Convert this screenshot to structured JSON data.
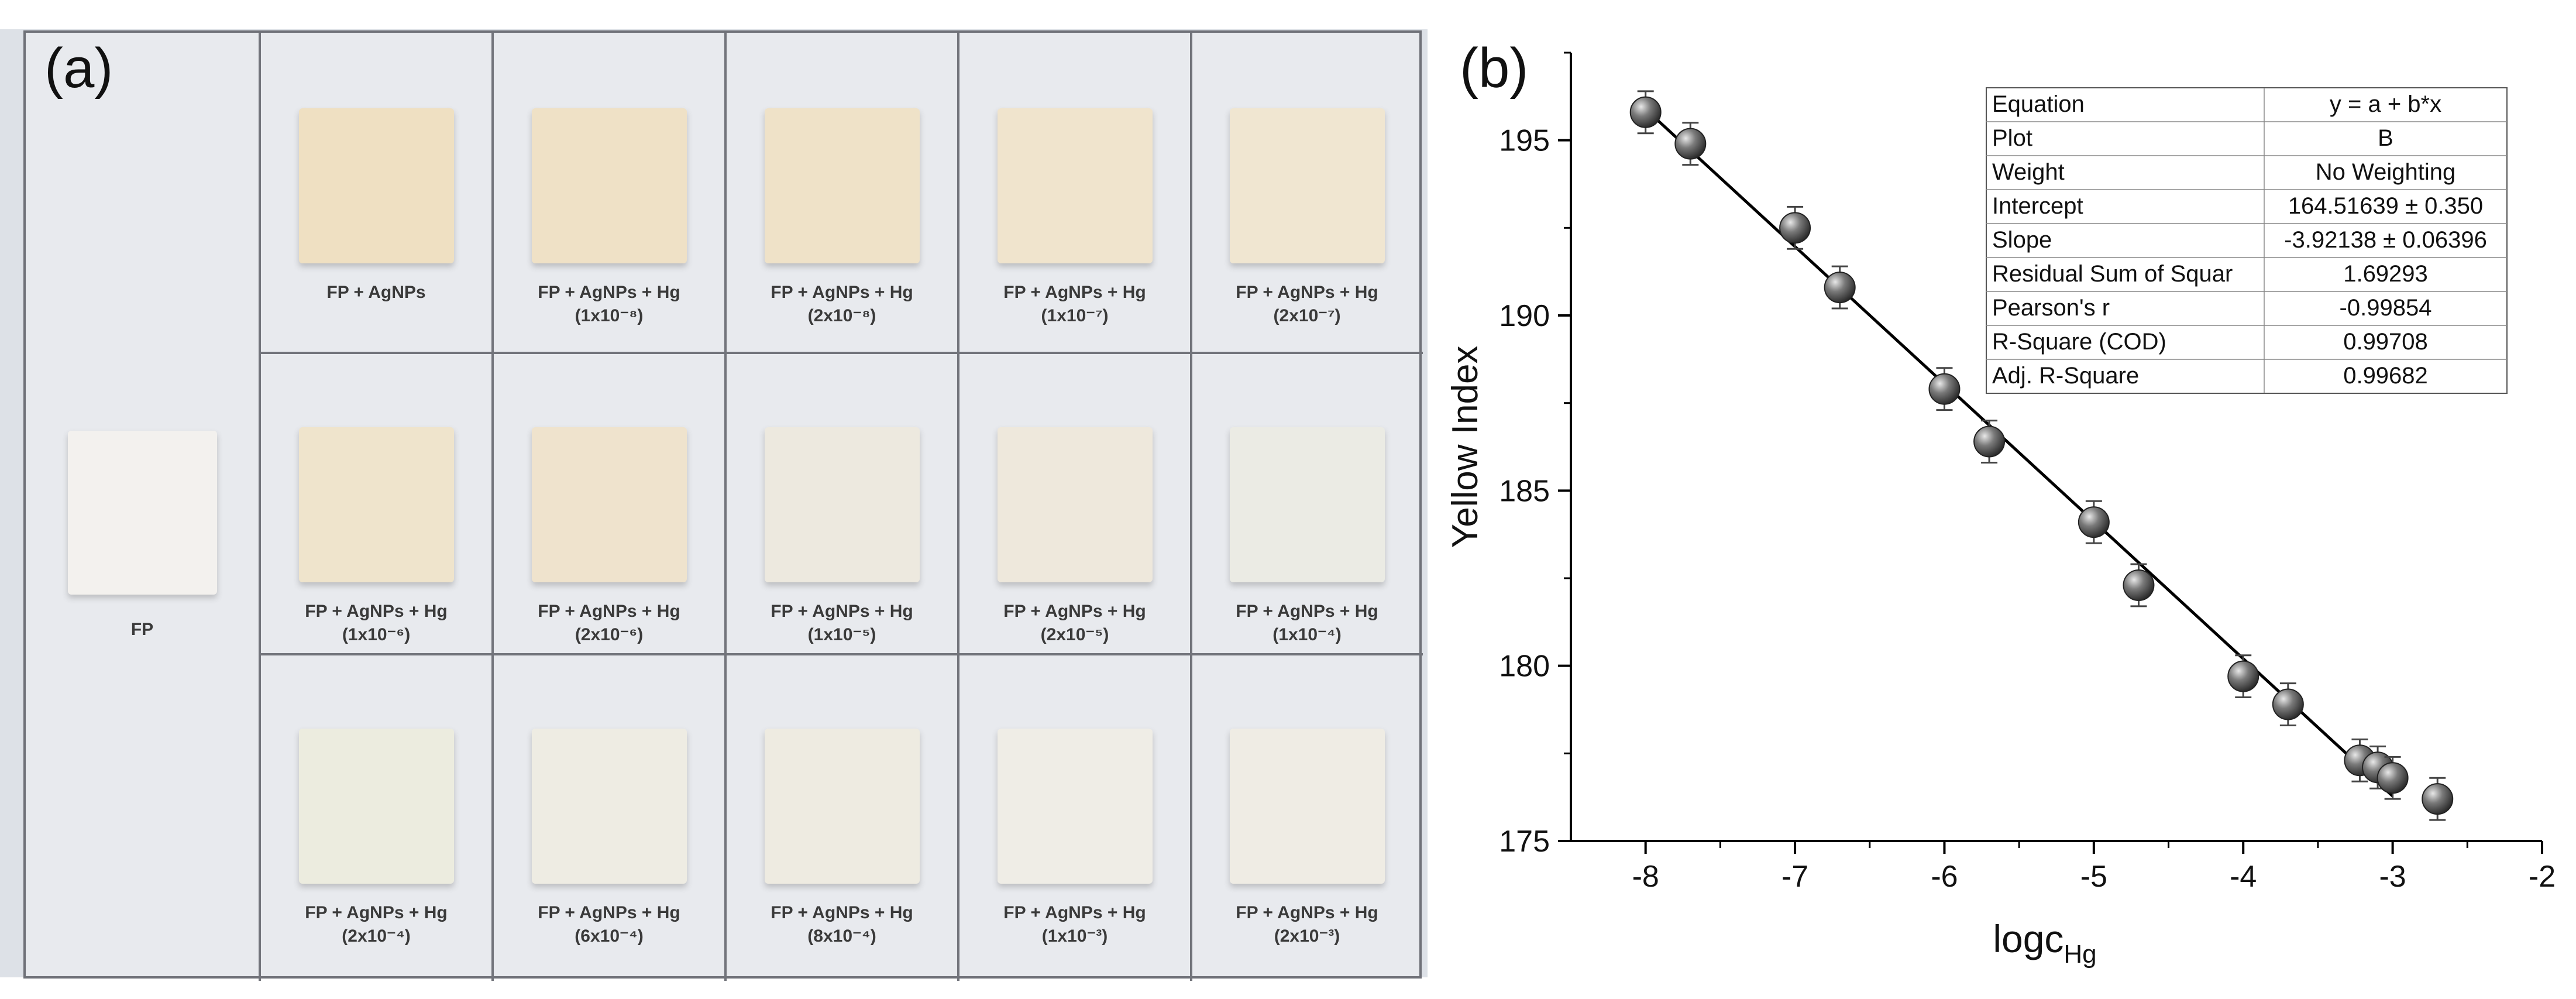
{
  "panel_a": {
    "letter": "(a)",
    "cells": [
      {
        "label": "FP",
        "conc": "",
        "color": "#f3f1ee"
      },
      {
        "label": "FP + AgNPs",
        "conc": "",
        "color": "#efe0c2"
      },
      {
        "label": "FP + AgNPs + Hg",
        "conc": "(1x10⁻⁸)",
        "color": "#efe1c6"
      },
      {
        "label": "FP + AgNPs + Hg",
        "conc": "(2x10⁻⁸)",
        "color": "#efe2c8"
      },
      {
        "label": "FP + AgNPs + Hg",
        "conc": "(1x10⁻⁷)",
        "color": "#f0e4cd"
      },
      {
        "label": "FP + AgNPs + Hg",
        "conc": "(2x10⁻⁷)",
        "color": "#f0e6d1"
      },
      {
        "label": "FP + AgNPs + Hg",
        "conc": "(1x10⁻⁶)",
        "color": "#efe4cc"
      },
      {
        "label": "FP + AgNPs + Hg",
        "conc": "(2x10⁻⁶)",
        "color": "#efe3cd"
      },
      {
        "label": "FP + AgNPs + Hg",
        "conc": "(1x10⁻⁵)",
        "color": "#ede9df"
      },
      {
        "label": "FP + AgNPs + Hg",
        "conc": "(2x10⁻⁵)",
        "color": "#eee8dc"
      },
      {
        "label": "FP + AgNPs + Hg",
        "conc": "(1x10⁻⁴)",
        "color": "#ebebe4"
      },
      {
        "label": "FP + AgNPs + Hg",
        "conc": "(2x10⁻⁴)",
        "color": "#ececdf"
      },
      {
        "label": "FP + AgNPs + Hg",
        "conc": "(6x10⁻⁴)",
        "color": "#eeece3"
      },
      {
        "label": "FP + AgNPs + Hg",
        "conc": "(8x10⁻⁴)",
        "color": "#eeebe1"
      },
      {
        "label": "FP + AgNPs + Hg",
        "conc": "(1x10⁻³)",
        "color": "#efede6"
      },
      {
        "label": "FP + AgNPs + Hg",
        "conc": "(2x10⁻³)",
        "color": "#efece4"
      }
    ]
  },
  "panel_b": {
    "letter": "(b)"
  },
  "chart_data": {
    "type": "scatter",
    "xlabel_main": "logc",
    "xlabel_sub": "Hg",
    "ylabel": "Yellow Index",
    "xlim": [
      -8.5,
      -2
    ],
    "ylim": [
      175,
      197.5
    ],
    "x_ticks": [
      -8,
      -7,
      -6,
      -5,
      -4,
      -3,
      -2
    ],
    "x_tick_labels": [
      "-8",
      "-7",
      "-6",
      "-5",
      "-4",
      "-3",
      "-2"
    ],
    "y_ticks": [
      175,
      180,
      185,
      190,
      195
    ],
    "y_tick_labels": [
      "175",
      "180",
      "185",
      "190",
      "195"
    ],
    "series": [
      {
        "x": [
          -8.0,
          -7.7,
          -7.0,
          -6.7,
          -6.0,
          -5.7,
          -5.0,
          -4.7,
          -4.0,
          -3.7,
          -3.22,
          -3.1,
          -3.0,
          -2.7
        ],
        "y": [
          195.8,
          194.9,
          192.5,
          190.8,
          187.9,
          186.4,
          184.1,
          182.3,
          179.7,
          178.9,
          177.3,
          177.1,
          176.8,
          176.2
        ],
        "error": [
          0.6,
          0.6,
          0.6,
          0.6,
          0.6,
          0.6,
          0.6,
          0.6,
          0.6,
          0.6,
          0.6,
          0.6,
          0.6,
          0.6
        ]
      }
    ],
    "fit": {
      "intercept": 164.51639,
      "slope": -3.92138,
      "x_range": [
        -8.0,
        -3.0
      ]
    },
    "grid": false,
    "fit_table": [
      {
        "key": "Equation",
        "value": "y = a + b*x"
      },
      {
        "key": "Plot",
        "value": "B"
      },
      {
        "key": "Weight",
        "value": "No Weighting"
      },
      {
        "key": "Intercept",
        "value": "164.51639 ± 0.350"
      },
      {
        "key": "Slope",
        "value": "-3.92138 ± 0.06396"
      },
      {
        "key": "Residual Sum of Squar",
        "value": "1.69293"
      },
      {
        "key": "Pearson's r",
        "value": "-0.99854"
      },
      {
        "key": "R-Square (COD)",
        "value": "0.99708"
      },
      {
        "key": "Adj. R-Square",
        "value": "0.99682"
      }
    ],
    "colors": {
      "marker": "#5a5a5a",
      "line": "#000000",
      "axis": "#000000"
    }
  }
}
